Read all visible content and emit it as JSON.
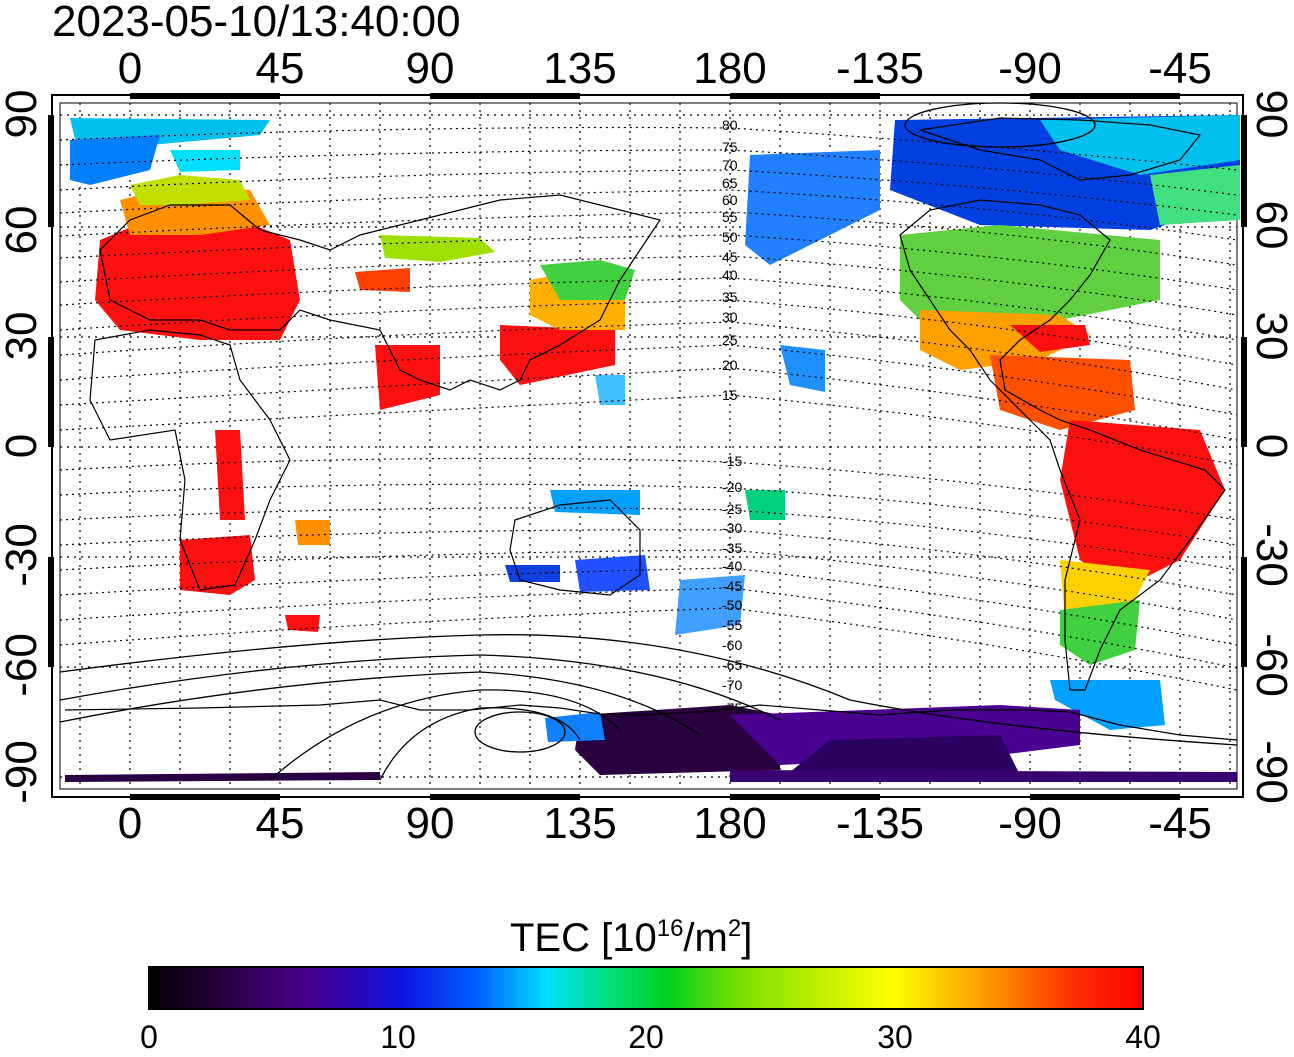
{
  "title": "2023-05-10/13:40:00",
  "lon_ticks_top": [
    "0",
    "45",
    "90",
    "135",
    "180",
    "-135",
    "-90",
    "-45"
  ],
  "lon_ticks_bottom": [
    "0",
    "45",
    "90",
    "135",
    "180",
    "-135",
    "-90",
    "-45"
  ],
  "lat_ticks_left": [
    "90",
    "60",
    "30",
    "0",
    "-30",
    "-60",
    "-90"
  ],
  "lat_ticks_right": [
    "90",
    "60",
    "30",
    "0",
    "-30",
    "-60",
    "-90"
  ],
  "contour_labels": [
    "80",
    "75",
    "70",
    "65",
    "60",
    "55",
    "50",
    "45",
    "40",
    "35",
    "30",
    "25",
    "20",
    "15",
    "-15",
    "-20",
    "-25",
    "-30",
    "-35",
    "-40",
    "-45",
    "-50",
    "-55",
    "-60",
    "-65",
    "-70",
    "-75"
  ],
  "colorbar": {
    "title_prefix": "TEC  [10",
    "title_exp1": "16",
    "title_mid": "/m",
    "title_exp2": "2",
    "title_suffix": "]",
    "ticks": [
      "0",
      "10",
      "20",
      "30",
      "40"
    ],
    "colors": [
      "#000000",
      "#4a0090",
      "#0060ff",
      "#00e0ff",
      "#00d020",
      "#ffff00",
      "#ff9000",
      "#ff0000"
    ]
  }
}
